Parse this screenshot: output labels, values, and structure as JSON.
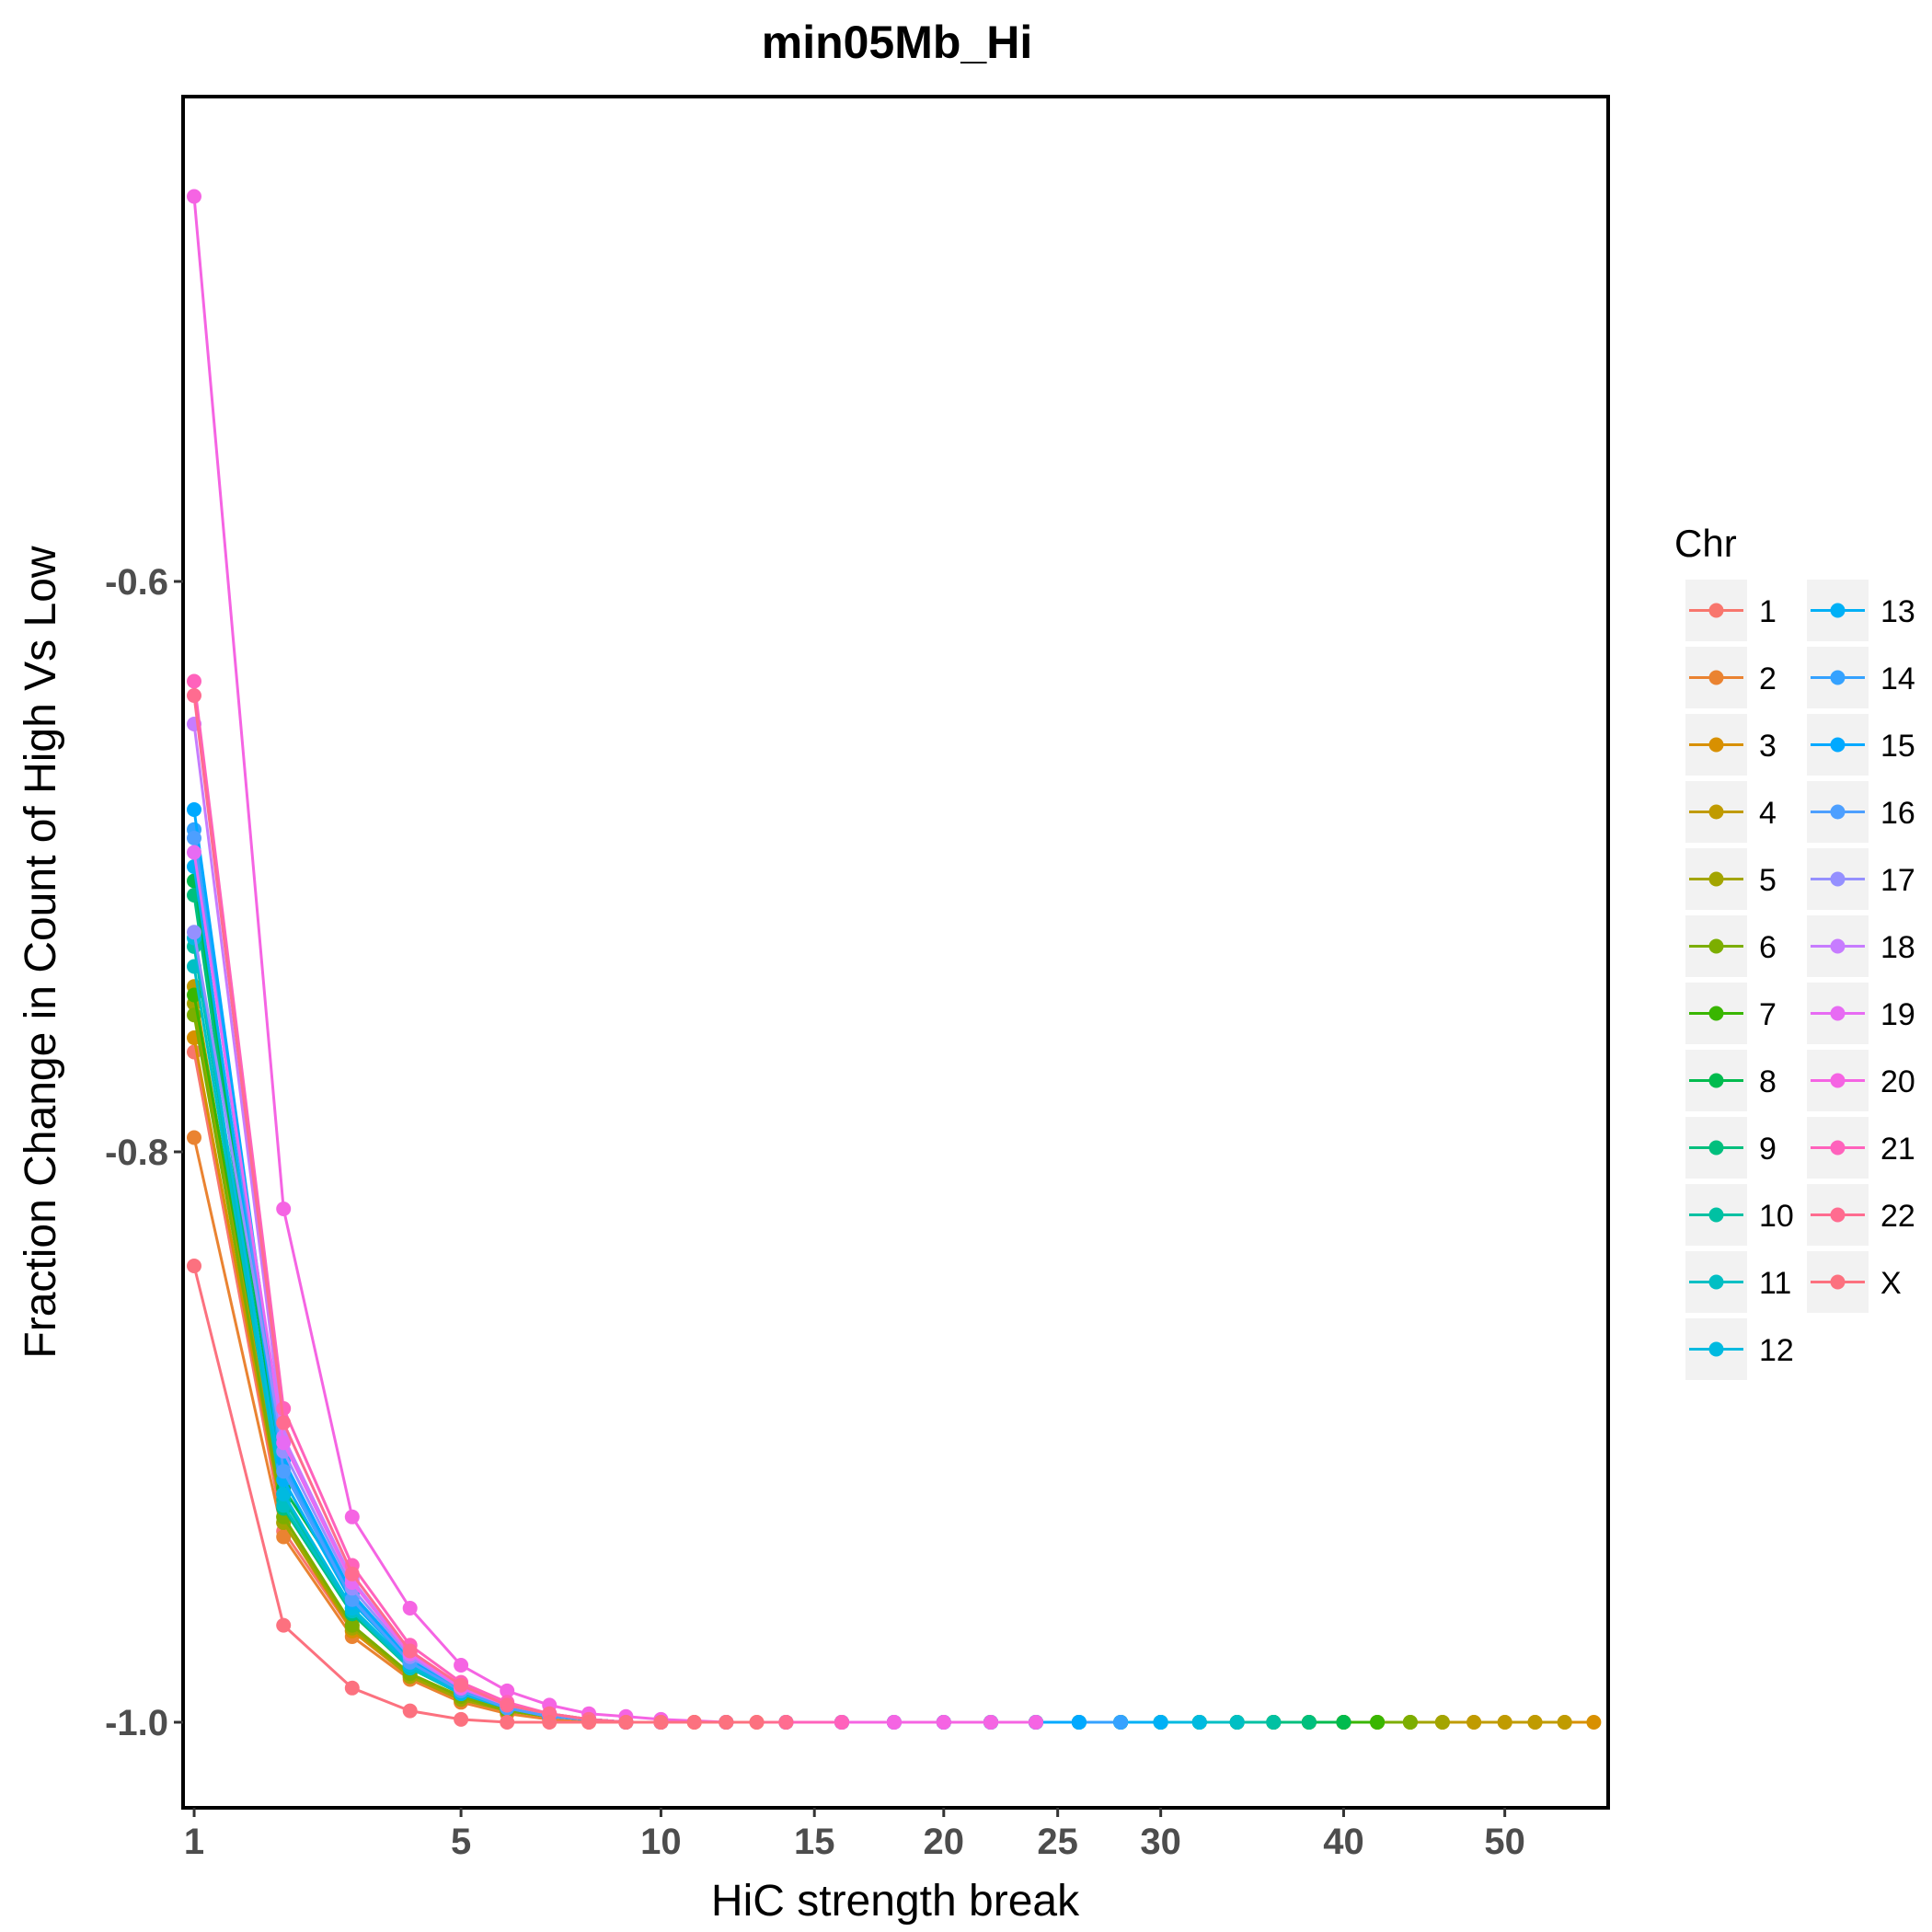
{
  "chart_data": {
    "type": "line",
    "title": "min05Mb_Hi",
    "xlabel": "HiC strength break",
    "ylabel": "Fraction Change in Count of High Vs Low",
    "x_scale": "sqrt",
    "xlim": [
      0.9,
      57
    ],
    "ylim": [
      -1.03,
      -0.43
    ],
    "x_ticks": [
      1,
      5,
      10,
      15,
      20,
      25,
      30,
      40,
      50
    ],
    "y_ticks": [
      -0.6,
      -0.8,
      -1.0
    ],
    "y_tick_labels": [
      "-0.6",
      "-0.8",
      "-1.0"
    ],
    "grid": false,
    "legend": {
      "title": "Chr",
      "position": "right",
      "columns": 2
    },
    "series": [
      {
        "name": "1",
        "color": "#F8766D",
        "x": [
          1,
          2,
          3,
          4,
          5,
          6,
          7,
          8,
          9,
          10,
          11
        ],
        "y": [
          -0.765,
          -0.933,
          -0.968,
          -0.984,
          -0.992,
          -0.996,
          -0.998,
          -0.999,
          -1.0,
          -1.0,
          -1.0
        ]
      },
      {
        "name": "2",
        "color": "#EA8331",
        "x": [
          1,
          2,
          3,
          4,
          5,
          6,
          7,
          8,
          9,
          10,
          11,
          12,
          13,
          14
        ],
        "y": [
          -0.795,
          -0.935,
          -0.97,
          -0.985,
          -0.993,
          -0.997,
          -0.999,
          -1.0,
          -1.0,
          -1.0,
          -1.0,
          -1.0,
          -1.0,
          -1.0
        ]
      },
      {
        "name": "3",
        "color": "#D89000",
        "x": [
          1,
          2,
          3,
          4,
          5,
          6,
          7,
          8,
          9,
          10,
          12,
          14,
          16,
          18,
          20,
          22,
          24,
          26,
          28,
          30,
          32,
          34,
          36,
          38,
          40,
          42,
          44,
          46,
          48,
          50,
          52,
          54,
          56
        ],
        "y": [
          -0.76,
          -0.93,
          -0.968,
          -0.984,
          -0.992,
          -0.996,
          -0.998,
          -0.999,
          -1.0,
          -1.0,
          -1.0,
          -1.0,
          -1.0,
          -1.0,
          -1.0,
          -1.0,
          -1.0,
          -1.0,
          -1.0,
          -1.0,
          -1.0,
          -1.0,
          -1.0,
          -1.0,
          -1.0,
          -1.0,
          -1.0,
          -1.0,
          -1.0,
          -1.0,
          -1.0,
          -1.0,
          -1.0
        ]
      },
      {
        "name": "4",
        "color": "#C09B00",
        "x": [
          1,
          2,
          3,
          4,
          5,
          6,
          7,
          8,
          9,
          10,
          12,
          14,
          16,
          18,
          20,
          22,
          24,
          26,
          28,
          30,
          32,
          34,
          36,
          38,
          40,
          42,
          44,
          46,
          48,
          50,
          52,
          54
        ],
        "y": [
          -0.742,
          -0.928,
          -0.966,
          -0.983,
          -0.991,
          -0.996,
          -0.998,
          -0.999,
          -1.0,
          -1.0,
          -1.0,
          -1.0,
          -1.0,
          -1.0,
          -1.0,
          -1.0,
          -1.0,
          -1.0,
          -1.0,
          -1.0,
          -1.0,
          -1.0,
          -1.0,
          -1.0,
          -1.0,
          -1.0,
          -1.0,
          -1.0,
          -1.0,
          -1.0,
          -1.0,
          -1.0
        ]
      },
      {
        "name": "5",
        "color": "#A3A500",
        "x": [
          1,
          2,
          3,
          4,
          5,
          6,
          7,
          8,
          9,
          10,
          12,
          14,
          16,
          18,
          20,
          22,
          24,
          26,
          28,
          30,
          32,
          34,
          36,
          38,
          40,
          42,
          44,
          46
        ],
        "y": [
          -0.748,
          -0.93,
          -0.967,
          -0.984,
          -0.992,
          -0.996,
          -0.998,
          -0.999,
          -1.0,
          -1.0,
          -1.0,
          -1.0,
          -1.0,
          -1.0,
          -1.0,
          -1.0,
          -1.0,
          -1.0,
          -1.0,
          -1.0,
          -1.0,
          -1.0,
          -1.0,
          -1.0,
          -1.0,
          -1.0,
          -1.0,
          -1.0
        ]
      },
      {
        "name": "6",
        "color": "#7CAE00",
        "x": [
          1,
          2,
          3,
          4,
          5,
          6,
          7,
          8,
          9,
          10,
          12,
          14,
          16,
          18,
          20,
          22,
          24,
          26,
          28,
          30,
          32,
          34,
          36,
          38,
          40,
          42,
          44
        ],
        "y": [
          -0.752,
          -0.928,
          -0.966,
          -0.983,
          -0.991,
          -0.996,
          -0.998,
          -0.999,
          -1.0,
          -1.0,
          -1.0,
          -1.0,
          -1.0,
          -1.0,
          -1.0,
          -1.0,
          -1.0,
          -1.0,
          -1.0,
          -1.0,
          -1.0,
          -1.0,
          -1.0,
          -1.0,
          -1.0,
          -1.0,
          -1.0
        ]
      },
      {
        "name": "7",
        "color": "#39B600",
        "x": [
          1,
          2,
          3,
          4,
          5,
          6,
          7,
          8,
          9,
          10,
          12,
          14,
          16,
          18,
          20,
          22,
          24,
          26,
          28,
          30,
          32,
          34,
          36,
          38,
          40,
          42
        ],
        "y": [
          -0.745,
          -0.92,
          -0.962,
          -0.981,
          -0.99,
          -0.995,
          -0.998,
          -0.999,
          -1.0,
          -1.0,
          -1.0,
          -1.0,
          -1.0,
          -1.0,
          -1.0,
          -1.0,
          -1.0,
          -1.0,
          -1.0,
          -1.0,
          -1.0,
          -1.0,
          -1.0,
          -1.0,
          -1.0,
          -1.0
        ]
      },
      {
        "name": "8",
        "color": "#00BB4E",
        "x": [
          1,
          2,
          3,
          4,
          5,
          6,
          7,
          8,
          9,
          10,
          12,
          14,
          16,
          18,
          20,
          22,
          24,
          26,
          28,
          30,
          32,
          34,
          36,
          38,
          40
        ],
        "y": [
          -0.705,
          -0.918,
          -0.955,
          -0.978,
          -0.989,
          -0.995,
          -0.998,
          -0.999,
          -1.0,
          -1.0,
          -1.0,
          -1.0,
          -1.0,
          -1.0,
          -1.0,
          -1.0,
          -1.0,
          -1.0,
          -1.0,
          -1.0,
          -1.0,
          -1.0,
          -1.0,
          -1.0,
          -1.0
        ]
      },
      {
        "name": "9",
        "color": "#00BF7D",
        "x": [
          1,
          2,
          3,
          4,
          5,
          6,
          7,
          8,
          9,
          10,
          12,
          14,
          16,
          18,
          20,
          22,
          24,
          26,
          28,
          30,
          32,
          34,
          36,
          38
        ],
        "y": [
          -0.71,
          -0.925,
          -0.962,
          -0.981,
          -0.99,
          -0.995,
          -0.998,
          -0.999,
          -1.0,
          -1.0,
          -1.0,
          -1.0,
          -1.0,
          -1.0,
          -1.0,
          -1.0,
          -1.0,
          -1.0,
          -1.0,
          -1.0,
          -1.0,
          -1.0,
          -1.0,
          -1.0
        ]
      },
      {
        "name": "10",
        "color": "#00C1A3",
        "x": [
          1,
          2,
          3,
          4,
          5,
          6,
          7,
          8,
          9,
          10,
          12,
          14,
          16,
          18,
          20,
          22,
          24,
          26,
          28,
          30,
          32,
          34,
          36
        ],
        "y": [
          -0.728,
          -0.922,
          -0.96,
          -0.98,
          -0.99,
          -0.995,
          -0.998,
          -0.999,
          -1.0,
          -1.0,
          -1.0,
          -1.0,
          -1.0,
          -1.0,
          -1.0,
          -1.0,
          -1.0,
          -1.0,
          -1.0,
          -1.0,
          -1.0,
          -1.0,
          -1.0
        ]
      },
      {
        "name": "11",
        "color": "#00BFC4",
        "x": [
          1,
          2,
          3,
          4,
          5,
          6,
          7,
          8,
          9,
          10,
          12,
          14,
          16,
          18,
          20,
          22,
          24,
          26,
          28,
          30,
          32,
          34
        ],
        "y": [
          -0.735,
          -0.924,
          -0.961,
          -0.981,
          -0.99,
          -0.995,
          -0.998,
          -0.999,
          -1.0,
          -1.0,
          -1.0,
          -1.0,
          -1.0,
          -1.0,
          -1.0,
          -1.0,
          -1.0,
          -1.0,
          -1.0,
          -1.0,
          -1.0,
          -1.0
        ]
      },
      {
        "name": "12",
        "color": "#00BAE0",
        "x": [
          1,
          2,
          3,
          4,
          5,
          6,
          7,
          8,
          9,
          10,
          12,
          14,
          16,
          18,
          20,
          22,
          24,
          26,
          28,
          30,
          32
        ],
        "y": [
          -0.725,
          -0.92,
          -0.96,
          -0.98,
          -0.99,
          -0.995,
          -0.998,
          -0.999,
          -1.0,
          -1.0,
          -1.0,
          -1.0,
          -1.0,
          -1.0,
          -1.0,
          -1.0,
          -1.0,
          -1.0,
          -1.0,
          -1.0,
          -1.0
        ]
      },
      {
        "name": "13",
        "color": "#00B0F6",
        "x": [
          1,
          2,
          3,
          4,
          5,
          6,
          7,
          8,
          9,
          10,
          12,
          14,
          16,
          18,
          20,
          22,
          24,
          26,
          28,
          30
        ],
        "y": [
          -0.7,
          -0.915,
          -0.958,
          -0.979,
          -0.989,
          -0.995,
          -0.998,
          -0.999,
          -1.0,
          -1.0,
          -1.0,
          -1.0,
          -1.0,
          -1.0,
          -1.0,
          -1.0,
          -1.0,
          -1.0,
          -1.0,
          -1.0
        ]
      },
      {
        "name": "14",
        "color": "#35A2FF",
        "x": [
          1,
          2,
          3,
          4,
          5,
          6,
          7,
          8,
          9,
          10,
          12,
          14,
          16,
          18,
          20,
          22,
          24,
          26,
          28
        ],
        "y": [
          -0.687,
          -0.91,
          -0.956,
          -0.978,
          -0.989,
          -0.994,
          -0.998,
          -0.999,
          -1.0,
          -1.0,
          -1.0,
          -1.0,
          -1.0,
          -1.0,
          -1.0,
          -1.0,
          -1.0,
          -1.0,
          -1.0
        ]
      },
      {
        "name": "15",
        "color": "#00A9FF",
        "x": [
          1,
          2,
          3,
          4,
          5,
          6,
          7,
          8,
          9,
          10,
          12,
          14,
          16,
          18,
          20,
          22,
          24,
          26
        ],
        "y": [
          -0.68,
          -0.908,
          -0.955,
          -0.978,
          -0.989,
          -0.994,
          -0.998,
          -0.999,
          -1.0,
          -1.0,
          -1.0,
          -1.0,
          -1.0,
          -1.0,
          -1.0,
          -1.0,
          -1.0,
          -1.0
        ]
      },
      {
        "name": "16",
        "color": "#4D9FFF",
        "x": [
          1,
          2,
          3,
          4,
          5,
          6,
          7,
          8,
          9,
          10,
          12,
          14,
          16,
          18,
          20,
          22,
          24
        ],
        "y": [
          -0.69,
          -0.912,
          -0.957,
          -0.979,
          -0.989,
          -0.995,
          -0.998,
          -0.999,
          -1.0,
          -1.0,
          -1.0,
          -1.0,
          -1.0,
          -1.0,
          -1.0,
          -1.0,
          -1.0
        ]
      },
      {
        "name": "17",
        "color": "#9590FF",
        "x": [
          1,
          2,
          3,
          4,
          5,
          6,
          7,
          8,
          9,
          10,
          12,
          14,
          16,
          18,
          20,
          22
        ],
        "y": [
          -0.723,
          -0.905,
          -0.953,
          -0.977,
          -0.988,
          -0.994,
          -0.997,
          -0.999,
          -1.0,
          -1.0,
          -1.0,
          -1.0,
          -1.0,
          -1.0,
          -1.0,
          -1.0
        ]
      },
      {
        "name": "18",
        "color": "#C77CFF",
        "x": [
          1,
          2,
          3,
          4,
          5,
          6,
          7,
          8,
          9,
          10,
          12,
          14,
          16,
          18,
          20
        ],
        "y": [
          -0.65,
          -0.9,
          -0.95,
          -0.976,
          -0.988,
          -0.994,
          -0.997,
          -0.999,
          -1.0,
          -1.0,
          -1.0,
          -1.0,
          -1.0,
          -1.0,
          -1.0
        ]
      },
      {
        "name": "19",
        "color": "#E76BF3",
        "x": [
          1,
          2,
          3,
          4,
          5,
          6,
          7,
          8,
          9,
          10,
          12,
          14,
          16,
          18
        ],
        "y": [
          -0.695,
          -0.902,
          -0.951,
          -0.976,
          -0.988,
          -0.994,
          -0.997,
          -0.999,
          -1.0,
          -1.0,
          -1.0,
          -1.0,
          -1.0,
          -1.0
        ]
      },
      {
        "name": "20",
        "color": "#F564E3",
        "x": [
          1,
          2,
          3,
          4,
          5,
          6,
          7,
          8,
          9,
          10,
          12,
          14,
          16,
          18,
          20,
          22,
          24
        ],
        "y": [
          -0.465,
          -0.82,
          -0.928,
          -0.96,
          -0.98,
          -0.989,
          -0.994,
          -0.997,
          -0.998,
          -0.999,
          -1.0,
          -1.0,
          -1.0,
          -1.0,
          -1.0,
          -1.0,
          -1.0
        ]
      },
      {
        "name": "21",
        "color": "#FF62BC",
        "x": [
          1,
          2,
          3,
          4,
          5,
          6,
          7,
          8,
          9,
          10,
          12,
          14,
          16
        ],
        "y": [
          -0.635,
          -0.89,
          -0.945,
          -0.973,
          -0.986,
          -0.993,
          -0.997,
          -0.999,
          -1.0,
          -1.0,
          -1.0,
          -1.0,
          -1.0
        ]
      },
      {
        "name": "22",
        "color": "#FF6C90",
        "x": [
          1,
          2,
          3,
          4,
          5,
          6,
          7,
          8,
          9,
          10,
          12,
          14
        ],
        "y": [
          -0.64,
          -0.895,
          -0.948,
          -0.975,
          -0.987,
          -0.994,
          -0.997,
          -0.999,
          -1.0,
          -1.0,
          -1.0,
          -1.0
        ]
      },
      {
        "name": "X",
        "color": "#FC717F",
        "x": [
          1,
          2,
          3,
          4,
          5,
          6,
          7,
          8,
          9,
          10,
          11,
          12,
          13
        ],
        "y": [
          -0.84,
          -0.966,
          -0.988,
          -0.996,
          -0.999,
          -1.0,
          -1.0,
          -1.0,
          -1.0,
          -1.0,
          -1.0,
          -1.0,
          -1.0
        ]
      }
    ]
  }
}
